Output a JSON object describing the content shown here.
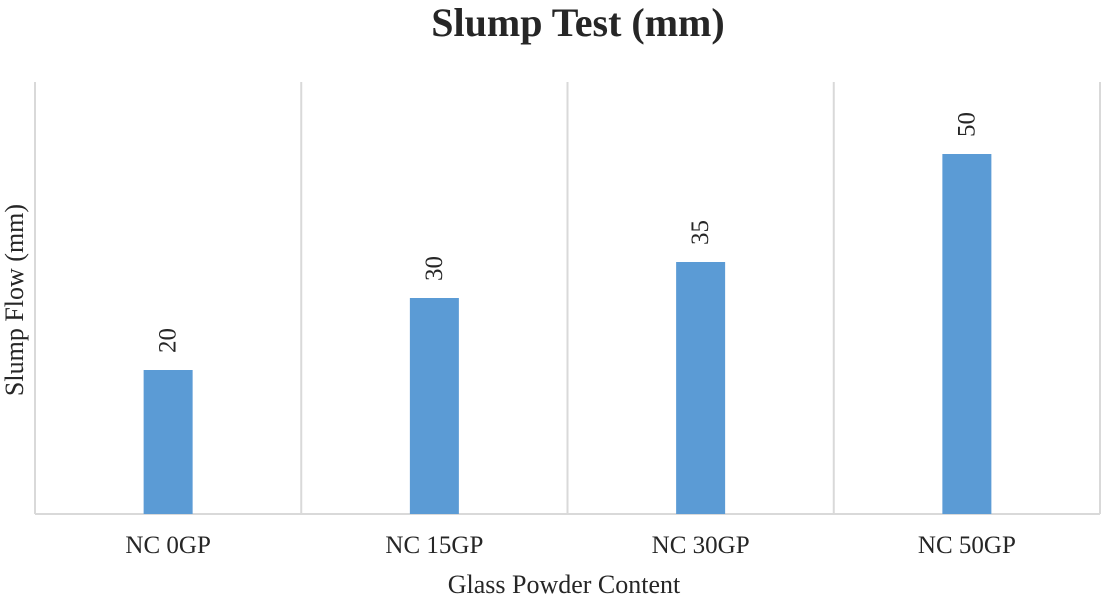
{
  "chart_data": {
    "type": "bar",
    "title": "Slump Test (mm)",
    "xlabel": "Glass Powder Content",
    "ylabel": "Slump Flow (mm)",
    "categories": [
      "NC 0GP",
      "NC 15GP",
      "NC 30GP",
      "NC 50GP"
    ],
    "values": [
      20,
      30,
      35,
      50
    ],
    "data_labels": [
      "20",
      "30",
      "35",
      "50"
    ],
    "ylim": [
      0,
      60
    ],
    "grid": "vertical-category-separators",
    "legend": "none",
    "colors": {
      "bar": "#5b9bd5",
      "grid": "#d9d9d9",
      "text": "#262626"
    }
  }
}
